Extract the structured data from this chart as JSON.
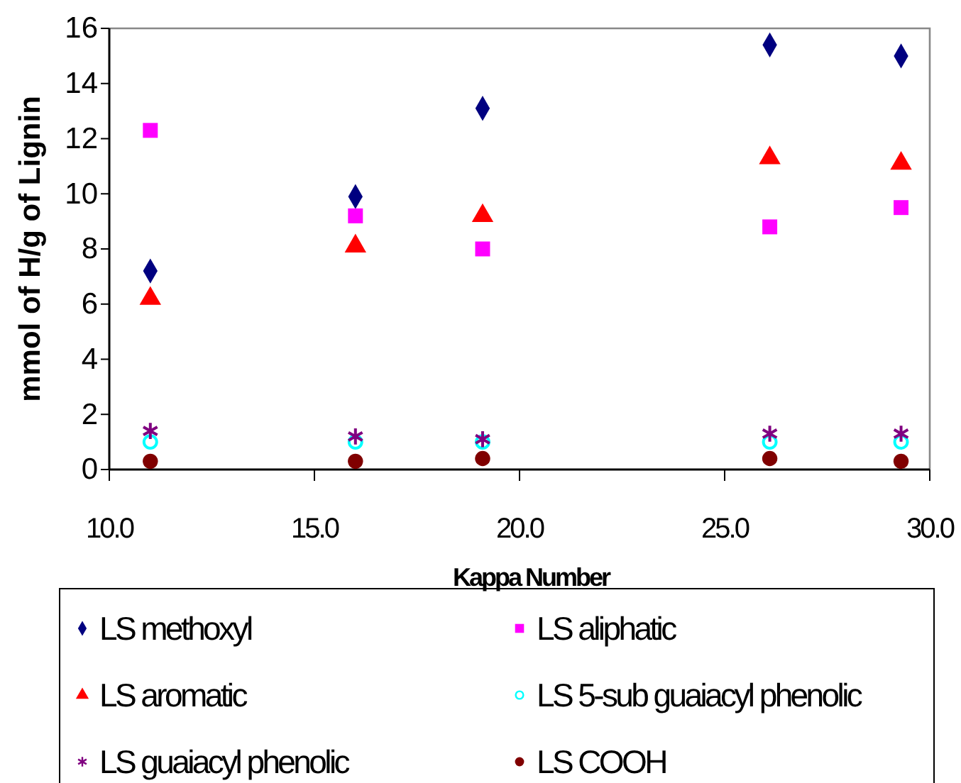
{
  "chart_data": {
    "type": "scatter",
    "xlabel": "Kappa Number",
    "ylabel": "mmol of H/g of Lignin",
    "x": [
      11.0,
      16.0,
      19.1,
      26.1,
      29.3
    ],
    "xlim": [
      10,
      30
    ],
    "xticks": [
      {
        "value": 10,
        "label": "10.0"
      },
      {
        "value": 15,
        "label": "15.0"
      },
      {
        "value": 20,
        "label": "20.0"
      },
      {
        "value": 25,
        "label": "25.0"
      },
      {
        "value": 30,
        "label": "30.0"
      }
    ],
    "ylim": [
      0,
      16
    ],
    "yticks": [
      0,
      2,
      4,
      6,
      8,
      10,
      12,
      14,
      16
    ],
    "grid": false,
    "legend": "bottom",
    "series": [
      {
        "name": "LS methoxyl",
        "color": "#000080",
        "marker": "diamond",
        "values": [
          7.2,
          9.9,
          13.1,
          15.4,
          15.0
        ]
      },
      {
        "name": "LS aliphatic",
        "color": "#ff00ff",
        "marker": "square",
        "values": [
          12.3,
          9.2,
          8.0,
          8.8,
          9.5
        ]
      },
      {
        "name": "LS aromatic",
        "color": "#ff0000",
        "marker": "triangle",
        "values": [
          6.2,
          8.1,
          9.2,
          11.3,
          11.1
        ]
      },
      {
        "name": "LS 5-sub guaiacyl phenolic",
        "color": "#00ffff",
        "marker": "circle",
        "values": [
          1.0,
          1.0,
          1.0,
          1.0,
          1.0
        ]
      },
      {
        "name": "LS guaiacyl phenolic",
        "color": "#800080",
        "marker": "cross",
        "values": [
          1.4,
          1.2,
          1.1,
          1.3,
          1.3
        ]
      },
      {
        "name": "LS COOH",
        "color": "#800000",
        "marker": "circle",
        "values": [
          0.3,
          0.3,
          0.4,
          0.4,
          0.3
        ]
      }
    ]
  }
}
